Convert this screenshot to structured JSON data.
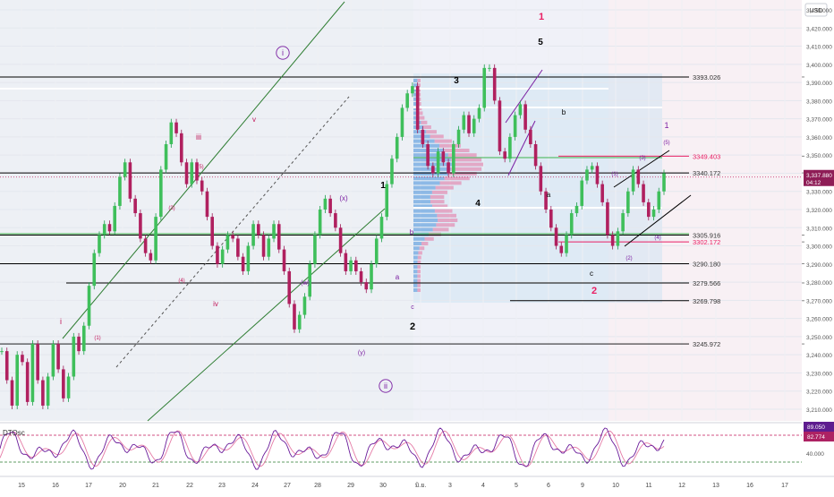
{
  "currency": "USD",
  "indicator": {
    "label": "DTOsc",
    "value_fast": "89.050",
    "value_slow": "82.774",
    "scale_label": "40.000",
    "level_upper": 80,
    "level_lower": 20
  },
  "price_axis": {
    "ticks": [
      "3,430.000",
      "3,420.000",
      "3,410.000",
      "3,400.000",
      "3,390.000",
      "3,380.000",
      "3,370.000",
      "3,360.000",
      "3,350.000",
      "3,340.000",
      "3,330.000",
      "3,320.000",
      "3,310.000",
      "3,300.000",
      "3,290.000",
      "3,280.000",
      "3,270.000",
      "3,260.000",
      "3,250.000",
      "3,240.000",
      "3,230.000",
      "3,220.000",
      "3,210.000"
    ],
    "current_price": "3,337.880",
    "countdown": "04:12"
  },
  "time_axis": [
    "15",
    "16",
    "17",
    "20",
    "21",
    "22",
    "23",
    "24",
    "27",
    "28",
    "29",
    "30",
    "มิ.ย.",
    "3",
    "4",
    "5",
    "6",
    "9",
    "10",
    "11",
    "12",
    "13",
    "16",
    "17"
  ],
  "levels": [
    {
      "value": "3393.026",
      "price": 3393.026,
      "color": "#000000"
    },
    {
      "value": "3349.403",
      "price": 3349.403,
      "color": "#e91e63"
    },
    {
      "value": "3340.172",
      "price": 3340.172,
      "color": "#000000"
    },
    {
      "value": "3305.916",
      "price": 3305.916,
      "color": "#000000"
    },
    {
      "value": "3302.172",
      "price": 3302.172,
      "color": "#e91e63"
    },
    {
      "value": "3290.180",
      "price": 3290.18,
      "color": "#000000"
    },
    {
      "value": "3279.566",
      "price": 3279.566,
      "color": "#000000"
    },
    {
      "value": "3269.798",
      "price": 3269.798,
      "color": "#000000"
    },
    {
      "value": "3245.972",
      "price": 3245.972,
      "color": "#000000"
    }
  ],
  "wave_labels": [
    {
      "text": "i",
      "color": "#c2185b"
    },
    {
      "text": "(1)",
      "color": "#c2185b"
    },
    {
      "text": "(4)",
      "color": "#c2185b"
    },
    {
      "text": "(3)",
      "color": "#c2185b"
    },
    {
      "text": "iii",
      "color": "#c2185b"
    },
    {
      "text": "(5)",
      "color": "#c2185b"
    },
    {
      "text": "iv",
      "color": "#c2185b"
    },
    {
      "text": "v",
      "color": "#c2185b"
    },
    {
      "text": "i",
      "color": "#7b1fa2"
    },
    {
      "text": "(w)",
      "color": "#7b1fa2"
    },
    {
      "text": "(x)",
      "color": "#7b1fa2"
    },
    {
      "text": "(y)",
      "color": "#7b1fa2"
    },
    {
      "text": "ii",
      "color": "#7b1fa2"
    },
    {
      "text": "1",
      "color": "#000000"
    },
    {
      "text": "2",
      "color": "#000000"
    },
    {
      "text": "a",
      "color": "#7b1fa2"
    },
    {
      "text": "b",
      "color": "#7b1fa2"
    },
    {
      "text": "c",
      "color": "#7b1fa2"
    },
    {
      "text": "3",
      "color": "#000000"
    },
    {
      "text": "4",
      "color": "#000000"
    },
    {
      "text": "5",
      "color": "#000000"
    },
    {
      "text": "1",
      "color": "#e91e63"
    },
    {
      "text": "a",
      "color": "#000000"
    },
    {
      "text": "b",
      "color": "#000000"
    },
    {
      "text": "c",
      "color": "#000000"
    },
    {
      "text": "2",
      "color": "#e91e63"
    },
    {
      "text": "(1)",
      "color": "#7b1fa2"
    },
    {
      "text": "(2)",
      "color": "#7b1fa2"
    },
    {
      "text": "(3)",
      "color": "#7b1fa2"
    },
    {
      "text": "(4)",
      "color": "#7b1fa2"
    },
    {
      "text": "(5)",
      "color": "#7b1fa2"
    },
    {
      "text": "1",
      "color": "#7b1fa2"
    }
  ],
  "chart_data": {
    "type": "line",
    "title": "",
    "xlabel": "",
    "ylabel": "",
    "ylim": [
      3201,
      3440
    ],
    "x_range": [
      "15",
      "17"
    ],
    "grid": true,
    "series": [
      {
        "values": [
          3242,
          3226,
          3212,
          3240,
          3236,
          3214,
          3246,
          3226,
          3212,
          3228,
          3246,
          3232,
          3216,
          3228,
          3250,
          3242,
          3256,
          3278,
          3296,
          3306,
          3312,
          3308,
          3322,
          3338,
          3346,
          3326,
          3318,
          3304,
          3296,
          3292,
          3316,
          3342,
          3356,
          3368,
          3362,
          3346,
          3334,
          3346,
          3336,
          3330,
          3316,
          3300,
          3290,
          3298,
          3306,
          3304,
          3294,
          3286,
          3300,
          3312,
          3306,
          3294,
          3304,
          3312,
          3298,
          3286,
          3268,
          3254,
          3262,
          3272,
          3290,
          3306,
          3320,
          3326,
          3318,
          3310,
          3296,
          3286,
          3292,
          3286,
          3280,
          3276,
          3290,
          3304,
          3316,
          3334,
          3348,
          3360,
          3376,
          3384,
          3388,
          3364,
          3356,
          3344,
          3340,
          3352,
          3346,
          3340,
          3356,
          3364,
          3372,
          3362,
          3370,
          3376,
          3398,
          3398,
          3380,
          3352,
          3348,
          3360,
          3372,
          3378,
          3364,
          3356,
          3344,
          3330,
          3320,
          3310,
          3300,
          3296,
          3306,
          3318,
          3322,
          3336,
          3342,
          3344,
          3334,
          3324,
          3306,
          3300,
          3308,
          3318,
          3330,
          3342,
          3334,
          3324,
          3316,
          3320,
          3330,
          3340
        ]
      }
    ]
  }
}
